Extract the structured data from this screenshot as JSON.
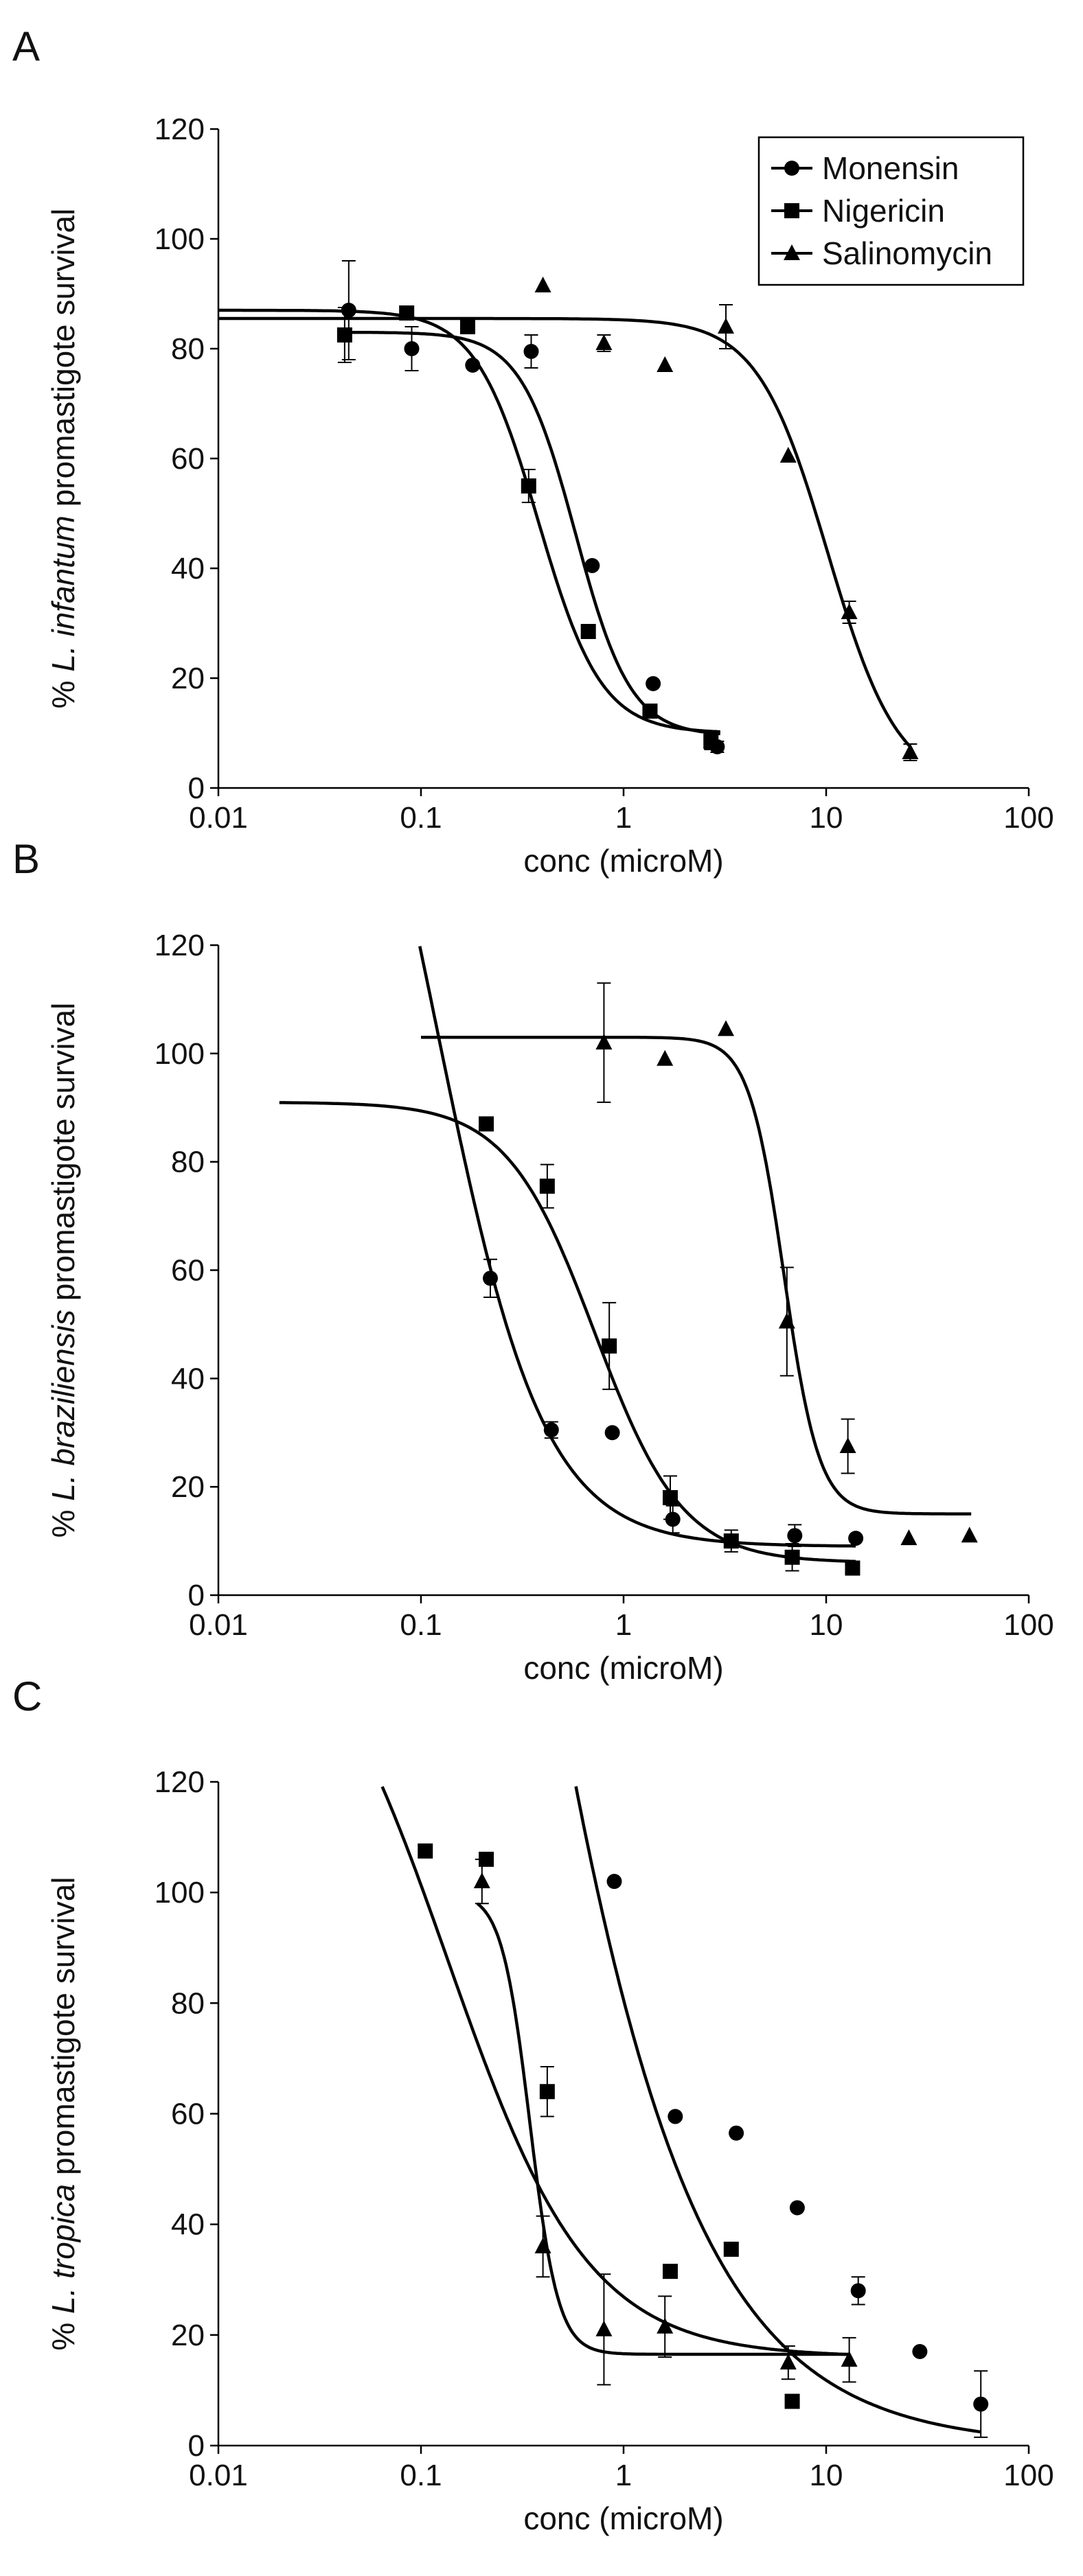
{
  "chart_data": [
    {
      "type": "scatter",
      "panel": "A",
      "xlabel": "conc (microM)",
      "ylabel_prefix": "% ",
      "ylabel_species": "L. infantum",
      "ylabel_suffix": " promastigote survival",
      "xscale": "log",
      "xlim": [
        0.01,
        100
      ],
      "ylim": [
        0,
        120
      ],
      "xticks": [
        0.01,
        0.1,
        1,
        10,
        100
      ],
      "xtick_labels": [
        "0.01",
        "0.1",
        "1",
        "10",
        "100"
      ],
      "yticks": [
        0,
        20,
        40,
        60,
        80,
        100,
        120
      ],
      "ytick_labels": [
        "0",
        "20",
        "40",
        "60",
        "80",
        "100",
        "120"
      ],
      "legend": {
        "position": "top-right",
        "entries": [
          "Monensin",
          "Nigericin",
          "Salinomycin"
        ]
      },
      "series": [
        {
          "name": "Monensin",
          "marker": "circle",
          "points": [
            [
              0.044,
              87,
              9
            ],
            [
              0.09,
              80,
              4
            ],
            [
              0.18,
              77,
              0
            ],
            [
              0.35,
              79.5,
              3
            ],
            [
              0.7,
              40.5,
              0
            ],
            [
              1.4,
              19,
              0
            ],
            [
              2.9,
              7.5,
              1
            ]
          ],
          "fit": {
            "top": 83,
            "bottom": 9.5,
            "ec50": 0.58,
            "hill": 3.2,
            "xmin": 0.04,
            "xmax": 3.0
          }
        },
        {
          "name": "Nigericin",
          "marker": "square",
          "points": [
            [
              0.042,
              82.5,
              5
            ],
            [
              0.085,
              86.5,
              0
            ],
            [
              0.17,
              84,
              0
            ],
            [
              0.34,
              55,
              3
            ],
            [
              0.67,
              28.5,
              0
            ],
            [
              1.35,
              14,
              1
            ],
            [
              2.7,
              8.5,
              1.5
            ]
          ],
          "fit": {
            "top": 87,
            "bottom": 10,
            "ec50": 0.38,
            "hill": 2.8,
            "xmin": 0.01,
            "xmax": 3.0
          }
        },
        {
          "name": "Salinomycin",
          "marker": "triangle",
          "points": [
            [
              0.4,
              91.5,
              0
            ],
            [
              0.8,
              81,
              1.5
            ],
            [
              1.6,
              77,
              0
            ],
            [
              3.2,
              84,
              4
            ],
            [
              6.5,
              60.5,
              0
            ],
            [
              13,
              32,
              2
            ],
            [
              26,
              6.5,
              1.5
            ]
          ],
          "fit": {
            "top": 85.5,
            "bottom": 0,
            "ec50": 10.2,
            "hill": 2.5,
            "xmin": 0.01,
            "xmax": 26
          }
        }
      ]
    },
    {
      "type": "scatter",
      "panel": "B",
      "xlabel": "conc (microM)",
      "ylabel_prefix": "% ",
      "ylabel_species": "L. braziliensis",
      "ylabel_suffix": " promastigote survival",
      "xscale": "log",
      "xlim": [
        0.01,
        100
      ],
      "ylim": [
        0,
        120
      ],
      "xticks": [
        0.01,
        0.1,
        1,
        10,
        100
      ],
      "xtick_labels": [
        "0.01",
        "0.1",
        "1",
        "10",
        "100"
      ],
      "yticks": [
        0,
        20,
        40,
        60,
        80,
        100,
        120
      ],
      "ytick_labels": [
        "0",
        "20",
        "40",
        "60",
        "80",
        "100",
        "120"
      ],
      "series": [
        {
          "name": "Monensin",
          "marker": "circle",
          "points": [
            [
              0.22,
              58.5,
              3.5
            ],
            [
              0.44,
              30.5,
              1.5
            ],
            [
              0.88,
              30,
              0
            ],
            [
              1.75,
              14,
              2.5
            ],
            [
              7,
              11,
              2
            ],
            [
              14,
              10.5,
              0
            ]
          ],
          "fit": {
            "top": 200,
            "bottom": 9,
            "ec50": 0.12,
            "hill": 1.65,
            "xmin": 0.09,
            "xmax": 14
          }
        },
        {
          "name": "Nigericin",
          "marker": "square",
          "points": [
            [
              0.21,
              87,
              0
            ],
            [
              0.42,
              75.5,
              4
            ],
            [
              0.85,
              46,
              8
            ],
            [
              1.7,
              18,
              4
            ],
            [
              3.4,
              10,
              2
            ],
            [
              6.8,
              7,
              2.5
            ],
            [
              13.5,
              5,
              0
            ]
          ],
          "fit": {
            "top": 91,
            "bottom": 6,
            "ec50": 0.72,
            "hill": 2.0,
            "xmin": 0.02,
            "xmax": 14
          }
        },
        {
          "name": "Salinomycin",
          "marker": "triangle",
          "points": [
            [
              0.8,
              102,
              11
            ],
            [
              1.6,
              99,
              0
            ],
            [
              3.2,
              104.5,
              0
            ],
            [
              6.4,
              50.5,
              10
            ],
            [
              12.8,
              27.5,
              5
            ],
            [
              25.6,
              10.5,
              0
            ],
            [
              51,
              11,
              0
            ]
          ],
          "fit": {
            "top": 103,
            "bottom": 15,
            "ec50": 6.2,
            "hill": 5.0,
            "xmin": 0.1,
            "xmax": 52
          }
        }
      ]
    },
    {
      "type": "scatter",
      "panel": "C",
      "xlabel": "conc (microM)",
      "ylabel_prefix": "% ",
      "ylabel_species": "L. tropica",
      "ylabel_suffix": " promastigote survival",
      "xscale": "log",
      "xlim": [
        0.01,
        100
      ],
      "ylim": [
        0,
        120
      ],
      "xticks": [
        0.01,
        0.1,
        1,
        10,
        100
      ],
      "xtick_labels": [
        "0.01",
        "0.1",
        "1",
        "10",
        "100"
      ],
      "yticks": [
        0,
        20,
        40,
        60,
        80,
        100,
        120
      ],
      "ytick_labels": [
        "0",
        "20",
        "40",
        "60",
        "80",
        "100",
        "120"
      ],
      "series": [
        {
          "name": "Monensin",
          "marker": "circle",
          "points": [
            [
              0.9,
              102,
              0
            ],
            [
              1.8,
              59.5,
              0
            ],
            [
              3.6,
              56.5,
              0
            ],
            [
              7.2,
              43,
              0
            ],
            [
              14.4,
              28,
              2.5
            ],
            [
              29,
              17,
              0
            ],
            [
              58,
              7.5,
              6
            ]
          ],
          "fit": {
            "top": 500,
            "bottom": 0,
            "ec50": 0.16,
            "hill": 0.9,
            "xmin": 0.5,
            "xmax": 58
          }
        },
        {
          "name": "Nigericin",
          "marker": "square",
          "points": [
            [
              0.105,
              107.5,
              0
            ],
            [
              0.21,
              106,
              0
            ],
            [
              0.42,
              64,
              4.5
            ],
            [
              1.7,
              31.5,
              0
            ],
            [
              3.4,
              35.5,
              0
            ],
            [
              6.8,
              8,
              0
            ]
          ],
          "fit": {
            "top": 160,
            "bottom": 16,
            "ec50": 0.135,
            "hill": 1.25,
            "xmin": 0.05,
            "xmax": 13
          }
        },
        {
          "name": "Salinomycin",
          "marker": "triangle",
          "points": [
            [
              0.2,
              102,
              4
            ],
            [
              0.4,
              36,
              5.5
            ],
            [
              0.8,
              21,
              10
            ],
            [
              1.6,
              21.5,
              5.5
            ],
            [
              6.5,
              15,
              3
            ],
            [
              13,
              15.5,
              4
            ]
          ],
          "fit": {
            "top": 100,
            "bottom": 16.5,
            "ec50": 0.345,
            "hill": 6.2,
            "xmin": 0.19,
            "xmax": 13
          }
        }
      ]
    }
  ]
}
